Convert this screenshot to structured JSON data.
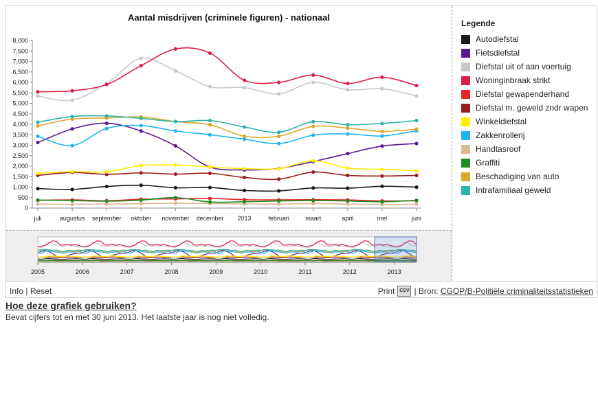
{
  "chart_data": {
    "type": "line",
    "title": "Aantal misdrijven (criminele figuren) - nationaal",
    "categories": [
      "juli",
      "augustus",
      "september",
      "oktober",
      "november",
      "december",
      "2013",
      "februari",
      "maart",
      "april",
      "mei",
      "juni"
    ],
    "ylim": [
      0,
      8000
    ],
    "yticks": [
      "0",
      "500",
      "1,000",
      "1,500",
      "2,000",
      "2,500",
      "3,000",
      "3,500",
      "4,000",
      "4,500",
      "5,000",
      "5,500",
      "6,000",
      "6,500",
      "7,000",
      "7,500",
      "8,000"
    ],
    "legend_title": "Legende",
    "series": [
      {
        "name": "Autodiefstal",
        "color": "#1a1a1a",
        "values": [
          930,
          890,
          1030,
          1090,
          970,
          980,
          840,
          820,
          960,
          950,
          1040,
          1000
        ]
      },
      {
        "name": "Fietsdiefstal",
        "color": "#5b1a8c",
        "values": [
          3130,
          3780,
          4050,
          3680,
          2970,
          1960,
          1820,
          1890,
          2220,
          2600,
          2960,
          3080
        ]
      },
      {
        "name": "Diefstal uit of aan voertuig",
        "color": "#c8c8c8",
        "values": [
          5350,
          5150,
          5950,
          7150,
          6550,
          5800,
          5750,
          5450,
          6000,
          5650,
          5700,
          5350
        ]
      },
      {
        "name": "Woninginbraak strikt",
        "color": "#dc1e46",
        "values": [
          5550,
          5600,
          5900,
          6800,
          7600,
          7400,
          6100,
          6000,
          6350,
          5950,
          6250,
          5850
        ]
      },
      {
        "name": "Diefstal gewapenderhand",
        "color": "#e8232a",
        "values": [
          370,
          390,
          350,
          420,
          440,
          460,
          400,
          390,
          400,
          390,
          340,
          350
        ]
      },
      {
        "name": "Diefstal m. geweld zndr wapen",
        "color": "#9b1a1a",
        "values": [
          1560,
          1700,
          1610,
          1680,
          1620,
          1660,
          1460,
          1380,
          1720,
          1560,
          1530,
          1560
        ]
      },
      {
        "name": "Winkeldiefstal",
        "color": "#ffee00",
        "values": [
          1660,
          1740,
          1730,
          2030,
          2060,
          1960,
          1880,
          1880,
          2260,
          1910,
          1850,
          1780
        ]
      },
      {
        "name": "Zakkenrollerij",
        "color": "#1eb4f0",
        "values": [
          3430,
          2980,
          3800,
          3940,
          3680,
          3500,
          3290,
          3080,
          3480,
          3540,
          3440,
          3690
        ]
      },
      {
        "name": "Handtasroof",
        "color": "#ddb894",
        "values": [
          190,
          180,
          190,
          210,
          230,
          220,
          200,
          190,
          220,
          190,
          170,
          180
        ]
      },
      {
        "name": "Graffiti",
        "color": "#1e8c1e",
        "values": [
          380,
          360,
          330,
          380,
          500,
          290,
          300,
          340,
          360,
          340,
          300,
          370
        ]
      },
      {
        "name": "Beschadiging van auto",
        "color": "#daa82a",
        "values": [
          3920,
          4250,
          4300,
          4350,
          4130,
          3980,
          3430,
          3430,
          3900,
          3820,
          3660,
          3770
        ]
      },
      {
        "name": "Intrafamiliaal geweld",
        "color": "#2ab4aa",
        "values": [
          4100,
          4370,
          4400,
          4280,
          4130,
          4180,
          3870,
          3620,
          4120,
          3980,
          4040,
          4180
        ]
      }
    ],
    "navigator": {
      "years": [
        "2005",
        "2006",
        "2007",
        "2008",
        "2009",
        "2010",
        "2011",
        "2012",
        "2013"
      ]
    },
    "grid": false,
    "legend_position": "right"
  },
  "footer": {
    "info_label": "Info",
    "reset_label": "Reset",
    "print_label": "Print",
    "csv_label": "CSV",
    "source_prefix": "| Bron:",
    "source_link": "CGOP/B-Politiële criminaliteitsstatistieken"
  },
  "help_link": "Hoe deze grafiek gebruiken?",
  "note": "Bevat cijfers tot en met 30 juni 2013. Het laatste jaar is nog niet volledig.",
  "separators": {
    "pipe": "|"
  }
}
